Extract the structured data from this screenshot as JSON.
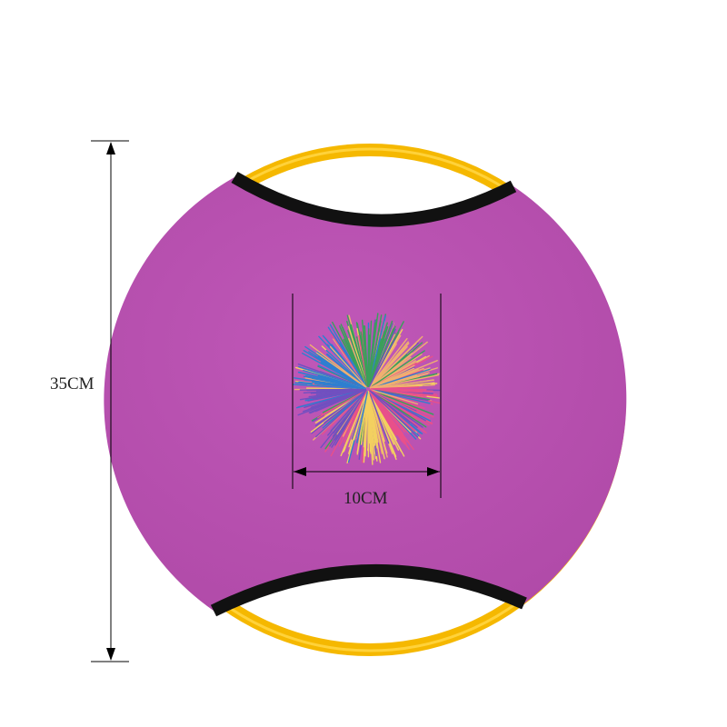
{
  "product": {
    "height_label": "35CM",
    "ball_width_label": "10CM",
    "colors": {
      "disc": "#bb52b4",
      "handle": "#f5b800",
      "trim": "#111111",
      "ball_strands": [
        "#2e7fd0",
        "#3aa05a",
        "#f0b070",
        "#e8508a",
        "#f3d060",
        "#7050c0"
      ]
    }
  }
}
